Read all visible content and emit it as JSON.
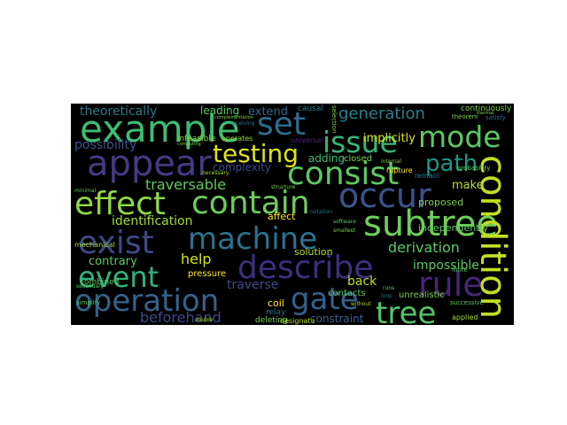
{
  "colors": {
    "background": "#000000",
    "page": "#ffffff"
  },
  "words": {
    "theoretically": "theoretically",
    "leading": "leading",
    "complementation": "complementation",
    "causal": "causal",
    "selection": "selection",
    "continuously": "continuously",
    "theorem": "theorem",
    "satisfy": "satisfy",
    "example": "example",
    "set": "set",
    "extend": "extend",
    "generation": "generation",
    "issue": "issue",
    "mode": "mode",
    "possibility": "possibility",
    "infeasible": "infeasible",
    "operates": "operates",
    "universal": "universal",
    "appear": "appear",
    "testing": "testing",
    "complexity": "complexity",
    "adding": "adding",
    "closed": "closed",
    "path": "path",
    "consist": "consist",
    "rupture": "rupture",
    "remain": "remain",
    "traversable": "traversable",
    "make": "make",
    "effect": "effect",
    "contain": "contain",
    "occur": "occur",
    "proposed": "proposed",
    "identification": "identification",
    "affect": "affect",
    "subtree": "subtree",
    "independently": "independently",
    "exist": "exist",
    "machine": "machine",
    "derivation": "derivation",
    "contrary": "contrary",
    "help": "help",
    "solution": "solution",
    "impossible": "impossible",
    "describe": "describe",
    "event": "event",
    "pressure": "pressure",
    "traverse": "traverse",
    "back": "back",
    "contacts": "contacts",
    "rule": "rule",
    "coil": "coil",
    "unrealistic": "unrealistic",
    "operation": "operation",
    "gate": "gate",
    "relay": "relay",
    "tree": "tree",
    "beforehand": "beforehand",
    "deleting": "deleting",
    "designate": "designate",
    "constraint": "constraint",
    "applied": "applied",
    "condition": "condition",
    "combined": "combined",
    "mechanical": "mechanical",
    "secondary": "secondary",
    "simplify": "simplify",
    "implicitly": "implicitly",
    "necessary": "necessary",
    "receiving": "receiving",
    "structure": "structure",
    "software": "software",
    "notation": "notation",
    "successive": "successive",
    "without": "without",
    "finite": "finite",
    "double": "double",
    "probability": "probability",
    "computing": "computing",
    "minimal": "minimal",
    "thermal": "thermal",
    "internal": "internal",
    "smallest": "smallest",
    "runs": "runs",
    "loop": "loop"
  }
}
